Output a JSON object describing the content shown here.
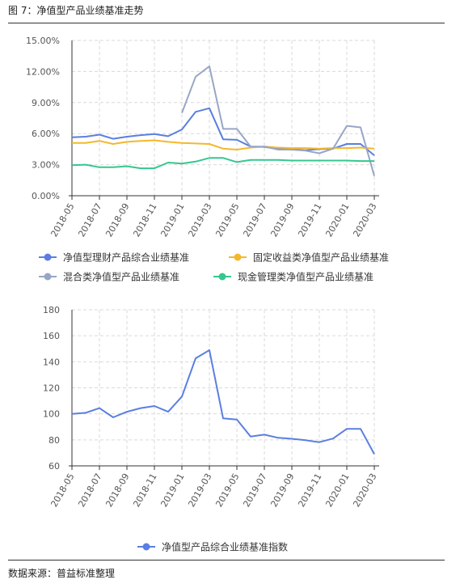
{
  "figure": {
    "title": "图 7：净值型产品业绩基准走势",
    "source": "数据来源：普益标准整理"
  },
  "colors": {
    "blue": "#5b7fe0",
    "orange": "#f4b82b",
    "grayblue": "#98a6c6",
    "green": "#35c78f",
    "grid": "#d9d9d9",
    "axis": "#333333"
  },
  "chart_data": [
    {
      "type": "line",
      "x": [
        "2018-05",
        "2018-06",
        "2018-07",
        "2018-08",
        "2018-09",
        "2018-10",
        "2018-11",
        "2018-12",
        "2019-01",
        "2019-02",
        "2019-03",
        "2019-04",
        "2019-05",
        "2019-06",
        "2019-07",
        "2019-08",
        "2019-09",
        "2019-10",
        "2019-11",
        "2019-12",
        "2020-01",
        "2020-02",
        "2020-03"
      ],
      "xticks": [
        "2018-05",
        "2018-07",
        "2018-09",
        "2018-11",
        "2019-01",
        "2019-03",
        "2019-05",
        "2019-07",
        "2019-09",
        "2019-11",
        "2020-01",
        "2020-03"
      ],
      "ylim": [
        0,
        15
      ],
      "yticks": [
        "0.00%",
        "3.00%",
        "6.00%",
        "9.00%",
        "12.00%",
        "15.00%"
      ],
      "grid": true,
      "legend": "bottom",
      "series": [
        {
          "name": "净值型理财产品综合业绩基准",
          "color": "#5b7fe0",
          "values": [
            5.65,
            5.7,
            5.9,
            5.5,
            5.7,
            5.85,
            5.95,
            5.75,
            6.4,
            8.1,
            8.45,
            5.45,
            5.4,
            4.75,
            4.7,
            4.55,
            4.5,
            4.4,
            4.5,
            4.55,
            5.0,
            5.0,
            3.9
          ]
        },
        {
          "name": "固定收益类净值型产品业绩基准",
          "color": "#f4b82b",
          "values": [
            5.1,
            5.1,
            5.3,
            5.0,
            5.2,
            5.3,
            5.35,
            5.2,
            5.1,
            5.05,
            5.0,
            4.55,
            4.45,
            4.65,
            4.75,
            4.65,
            4.6,
            4.6,
            4.55,
            4.6,
            4.6,
            4.65,
            4.55
          ]
        },
        {
          "name": "混合类净值型产品业绩基准",
          "color": "#98a6c6",
          "values": [
            null,
            null,
            null,
            null,
            null,
            null,
            null,
            null,
            8.0,
            11.5,
            12.5,
            6.45,
            6.45,
            4.75,
            4.75,
            4.45,
            4.45,
            4.35,
            4.1,
            4.55,
            6.75,
            6.6,
            1.9
          ]
        },
        {
          "name": "现金管理类净值型产品业绩基准",
          "color": "#35c78f",
          "values": [
            2.95,
            3.0,
            2.75,
            2.75,
            2.85,
            2.65,
            2.65,
            3.2,
            3.1,
            3.3,
            3.65,
            3.65,
            3.25,
            3.45,
            3.45,
            3.45,
            3.4,
            3.4,
            3.4,
            3.4,
            3.4,
            3.35,
            3.35
          ]
        }
      ]
    },
    {
      "type": "line",
      "x": [
        "2018-05",
        "2018-06",
        "2018-07",
        "2018-08",
        "2018-09",
        "2018-10",
        "2018-11",
        "2018-12",
        "2019-01",
        "2019-02",
        "2019-03",
        "2019-04",
        "2019-05",
        "2019-06",
        "2019-07",
        "2019-08",
        "2019-09",
        "2019-10",
        "2019-11",
        "2019-12",
        "2020-01",
        "2020-02",
        "2020-03"
      ],
      "xticks": [
        "2018-05",
        "2018-07",
        "2018-09",
        "2018-11",
        "2019-01",
        "2019-03",
        "2019-05",
        "2019-07",
        "2019-09",
        "2019-11",
        "2020-01",
        "2020-03"
      ],
      "ylim": [
        60,
        180
      ],
      "yticks": [
        "60",
        "80",
        "100",
        "120",
        "140",
        "160",
        "180"
      ],
      "grid": true,
      "legend": "bottom",
      "series": [
        {
          "name": "净值型产品综合业绩基准指数",
          "color": "#5b7fe0",
          "values": [
            100,
            100.8,
            104.4,
            97.3,
            101.6,
            104.4,
            106.0,
            101.6,
            113.3,
            142.7,
            149.0,
            96.5,
            95.6,
            82.5,
            84.0,
            81.6,
            80.8,
            79.7,
            78.2,
            81.0,
            88.5,
            88.5,
            69.0
          ]
        }
      ]
    }
  ]
}
